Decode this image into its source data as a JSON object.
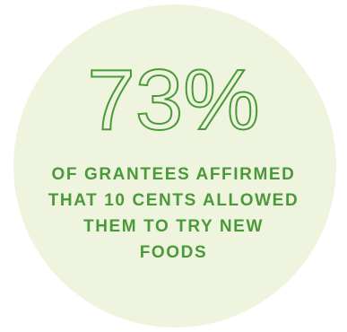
{
  "stat": {
    "value": "73%",
    "caption_lines": [
      "OF GRANTEES AFFIRMED",
      "THAT 10 CENTS ALLOWED",
      "THEM TO TRY NEW",
      "FOODS"
    ]
  },
  "colors": {
    "accent": "#4a9a3a",
    "circle_background": "#eef4dd",
    "page_background": "#ffffff"
  }
}
